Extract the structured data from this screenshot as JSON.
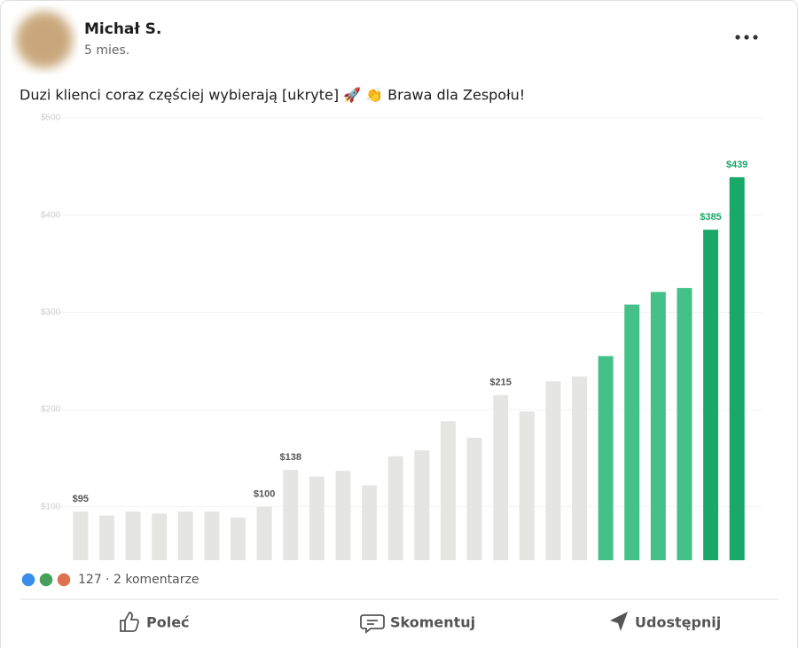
{
  "post": {
    "author": "Michał S.",
    "time": "5 mies.",
    "text": "Duzi klienci coraz częściej wybierają [ukryte] 🚀 👏  Brawa dla Zespołu!",
    "reactions": 127,
    "comments": "2 komentarze",
    "actions": [
      "Poleć",
      "Skomentuj",
      "Udostępnij"
    ]
  },
  "chart_data": {
    "type": "bar",
    "categories": [
      null,
      null,
      null,
      null,
      null,
      null,
      null,
      null,
      null,
      null,
      null,
      null,
      null,
      null,
      null,
      null,
      null,
      null,
      null,
      null,
      null,
      null,
      null,
      null,
      null,
      null
    ],
    "values": [
      95,
      91,
      95,
      93,
      95,
      95,
      89,
      100,
      138,
      131,
      137,
      122,
      152,
      158,
      188,
      171,
      215,
      198,
      229,
      234,
      255,
      308,
      321,
      325,
      385,
      439
    ],
    "value_labels": [
      "$95",
      null,
      null,
      null,
      null,
      null,
      null,
      "$100",
      "$138",
      null,
      null,
      null,
      null,
      null,
      null,
      null,
      "$215",
      null,
      null,
      null,
      null,
      null,
      null,
      null,
      "$385",
      "$439"
    ],
    "colors": [
      "#e5e5e3",
      "#e5e5e3",
      "#e5e5e3",
      "#e5e5e3",
      "#e5e5e3",
      "#e5e5e3",
      "#e5e5e3",
      "#e5e5e3",
      "#e5e5e3",
      "#e5e5e3",
      "#e5e5e3",
      "#e5e5e3",
      "#e5e5e3",
      "#e5e5e3",
      "#e5e5e3",
      "#e5e5e3",
      "#e5e5e3",
      "#e5e5e3",
      "#e5e5e3",
      "#e5e5e3",
      "#45c088",
      "#45c088",
      "#45c088",
      "#45c088",
      "#1aa968",
      "#1aa968"
    ],
    "ylim": [
      45,
      500
    ],
    "yticks": [
      {
        "value": 100,
        "label": "$100"
      },
      {
        "value": 200,
        "label": "$200"
      },
      {
        "value": 300,
        "label": "$300"
      },
      {
        "value": 400,
        "label": "$400"
      },
      {
        "value": 500,
        "label": "$500"
      }
    ],
    "grid": true
  }
}
